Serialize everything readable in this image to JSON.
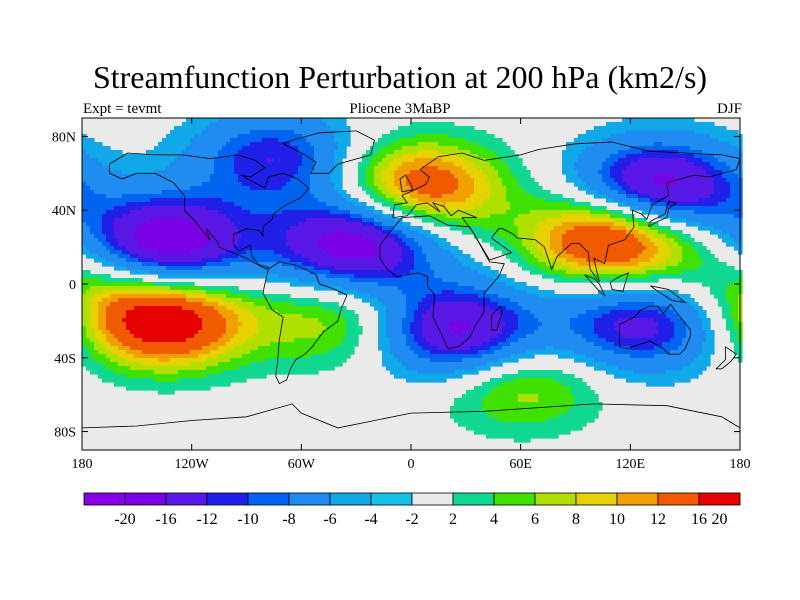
{
  "title": "Streamfunction Perturbation at 200 hPa (km2/s)",
  "subtitle_left": "Expt = tevmt",
  "subtitle_center": "Pliocene   3MaBP",
  "subtitle_right": "DJF",
  "lat_labels": [
    "80N",
    "40N",
    "0",
    "40S",
    "80S"
  ],
  "lon_labels": [
    "180",
    "120W",
    "60W",
    "0",
    "60E",
    "120E",
    "180"
  ],
  "colorbar": {
    "labels": [
      "-20",
      "-16",
      "-12",
      "-10",
      "-8",
      "-6",
      "-4",
      "-2",
      "2",
      "4",
      "6",
      "8",
      "10",
      "12",
      "16",
      "20"
    ],
    "colors": [
      "#8a00e6",
      "#7a00e6",
      "#5a18e6",
      "#2020e8",
      "#0064f0",
      "#1e8cf0",
      "#10a8e8",
      "#14c0e6",
      "#eaeaea",
      "#10d890",
      "#40e000",
      "#b0e000",
      "#e6d200",
      "#f0a000",
      "#f05a00",
      "#e60000"
    ]
  },
  "field": {
    "units": "km2/s",
    "background_value": 0,
    "anomalies": [
      {
        "name": "central pacific low",
        "lon": -135,
        "lat": 22,
        "value": -22
      },
      {
        "name": "atlantic low",
        "lon": -30,
        "lat": 22,
        "value": -20
      },
      {
        "name": "south pacific high",
        "lon": -135,
        "lat": -20,
        "value": 20
      },
      {
        "name": "north atlantic high",
        "lon": 5,
        "lat": 52,
        "value": 16
      },
      {
        "name": "asian high",
        "lon": 110,
        "lat": 25,
        "value": 20
      },
      {
        "name": "north pacific low",
        "lon": 135,
        "lat": 52,
        "value": -20
      },
      {
        "name": "southern africa low",
        "lon": 25,
        "lat": -25,
        "value": -18
      },
      {
        "name": "australia low",
        "lon": 125,
        "lat": -22,
        "value": -14
      },
      {
        "name": "arctic canada low",
        "lon": -75,
        "lat": 68,
        "value": -12
      },
      {
        "name": "brazil high",
        "lon": -40,
        "lat": -20,
        "value": 8
      },
      {
        "name": "southern ocean high",
        "lon": 60,
        "lat": -55,
        "value": 8
      },
      {
        "name": "tropical pacific high",
        "lon": -170,
        "lat": 5,
        "value": 6
      }
    ]
  }
}
